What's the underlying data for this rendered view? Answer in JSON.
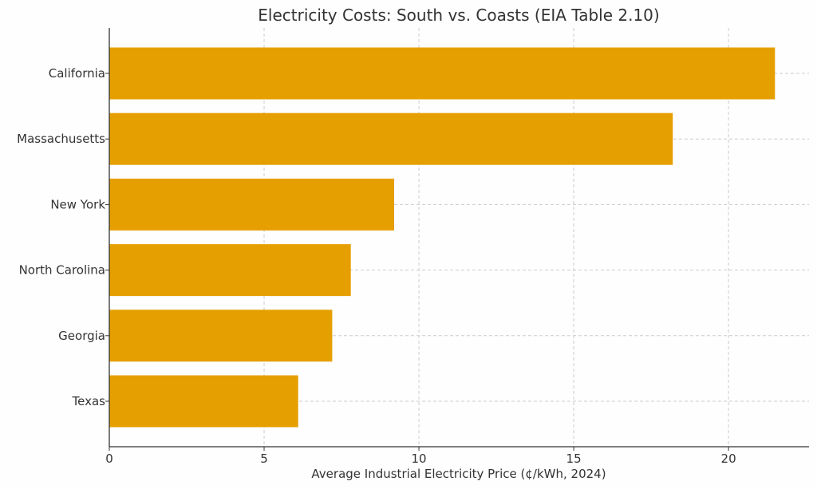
{
  "chart_data": {
    "type": "bar",
    "orientation": "horizontal",
    "title": "Electricity Costs: South vs. Coasts (EIA Table 2.10)",
    "xlabel": "Average Industrial Electricity Price (¢/kWh, 2024)",
    "ylabel": "",
    "categories": [
      "California",
      "Massachusetts",
      "New York",
      "North Carolina",
      "Georgia",
      "Texas"
    ],
    "values": [
      21.5,
      18.2,
      9.2,
      7.8,
      7.2,
      6.1
    ],
    "xlim": [
      0,
      22.6
    ],
    "xticks": [
      0,
      5,
      10,
      15,
      20
    ],
    "grid": true,
    "bar_color": "#e69f00"
  }
}
